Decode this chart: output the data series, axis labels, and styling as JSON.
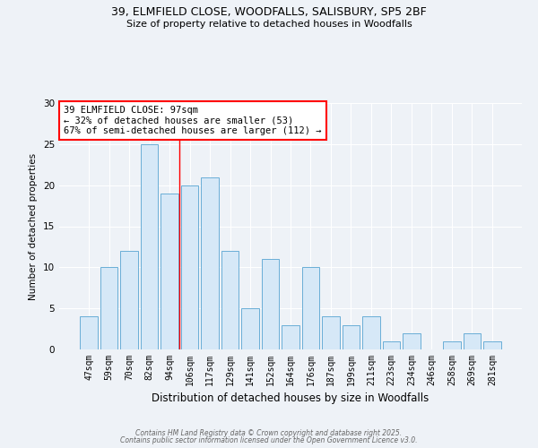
{
  "title1": "39, ELMFIELD CLOSE, WOODFALLS, SALISBURY, SP5 2BF",
  "title2": "Size of property relative to detached houses in Woodfalls",
  "xlabel": "Distribution of detached houses by size in Woodfalls",
  "ylabel": "Number of detached properties",
  "categories": [
    "47sqm",
    "59sqm",
    "70sqm",
    "82sqm",
    "94sqm",
    "106sqm",
    "117sqm",
    "129sqm",
    "141sqm",
    "152sqm",
    "164sqm",
    "176sqm",
    "187sqm",
    "199sqm",
    "211sqm",
    "223sqm",
    "234sqm",
    "246sqm",
    "258sqm",
    "269sqm",
    "281sqm"
  ],
  "values": [
    4,
    10,
    12,
    25,
    19,
    20,
    21,
    12,
    5,
    11,
    3,
    10,
    4,
    3,
    4,
    1,
    2,
    0,
    1,
    2,
    1
  ],
  "bar_color": "#d6e8f7",
  "bar_edge_color": "#6aaed6",
  "red_line_x": 4.5,
  "annotation_text": "39 ELMFIELD CLOSE: 97sqm\n← 32% of detached houses are smaller (53)\n67% of semi-detached houses are larger (112) →",
  "ylim": [
    0,
    30
  ],
  "yticks": [
    0,
    5,
    10,
    15,
    20,
    25,
    30
  ],
  "bg_color": "#eef2f7",
  "grid_color": "#ffffff",
  "footer1": "Contains HM Land Registry data © Crown copyright and database right 2025.",
  "footer2": "Contains public sector information licensed under the Open Government Licence v3.0."
}
